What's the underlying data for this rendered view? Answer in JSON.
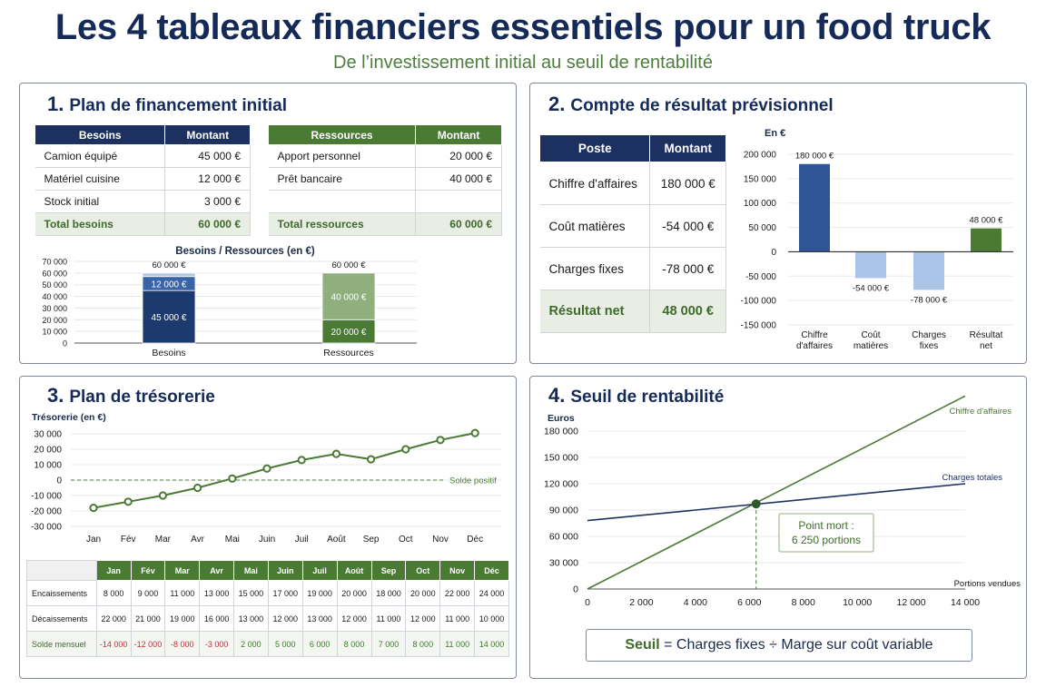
{
  "header": {
    "title": "Les 4 tableaux financiers essentiels pour un food truck",
    "subtitle": "De l’investissement initial au seuil de rentabilité"
  },
  "colors": {
    "navy": "#1d3161",
    "blue": "#2f5597",
    "light_blue": "#9cbbe0",
    "green": "#4a7a34",
    "light_green": "#8fb07c",
    "red": "#c0303a"
  },
  "panel1": {
    "num": "1.",
    "title": "Plan de financement initial",
    "besoins_table": {
      "headers": [
        "Besoins",
        "Montant"
      ],
      "rows": [
        [
          "Camion équipé",
          "45 000 €"
        ],
        [
          "Matériel cuisine",
          "12 000 €"
        ],
        [
          "Stock initial",
          "3 000 €"
        ]
      ],
      "total": [
        "Total besoins",
        "60 000 €"
      ]
    },
    "ressources_table": {
      "headers": [
        "Ressources",
        "Montant"
      ],
      "rows": [
        [
          "Apport personnel",
          "20 000 €"
        ],
        [
          "Prêt bancaire",
          "40 000 €"
        ],
        [
          "",
          ""
        ]
      ],
      "total": [
        "Total ressources",
        "60 000 €"
      ]
    }
  },
  "panel2": {
    "num": "2.",
    "title": "Compte de résultat prévisionnel",
    "table": {
      "headers": [
        "Poste",
        "Montant"
      ],
      "rows": [
        [
          "Chiffre d'affaires",
          "180 000 €"
        ],
        [
          "Coût matières",
          "-54 000 €"
        ],
        [
          "Charges fixes",
          "-78 000 €"
        ]
      ],
      "total": [
        "Résultat net",
        "48 000 €"
      ]
    }
  },
  "panel3": {
    "num": "3.",
    "title": "Plan de trésorerie",
    "table": {
      "months": [
        "Jan",
        "Fév",
        "Mar",
        "Avr",
        "Mai",
        "Juin",
        "Juil",
        "Août",
        "Sep",
        "Oct",
        "Nov",
        "Déc"
      ],
      "rows": [
        {
          "label": "Encaissements",
          "values": [
            "8 000",
            "9 000",
            "11 000",
            "13 000",
            "15 000",
            "17 000",
            "19 000",
            "20 000",
            "18 000",
            "20 000",
            "22 000",
            "24 000"
          ]
        },
        {
          "label": "Décaissements",
          "values": [
            "22 000",
            "21 000",
            "19 000",
            "16 000",
            "13 000",
            "12 000",
            "13 000",
            "12 000",
            "11 000",
            "12 000",
            "11 000",
            "10 000"
          ]
        },
        {
          "label": "Solde mensuel",
          "values": [
            "-14 000",
            "-12 000",
            "-8 000",
            "-3 000",
            "2 000",
            "5 000",
            "6 000",
            "8 000",
            "7 000",
            "8 000",
            "11 000",
            "14 000"
          ]
        }
      ]
    }
  },
  "panel4": {
    "num": "4.",
    "title": "Seuil de rentabilité",
    "formula_label": "Seuil",
    "formula_eq": " =  Charges fixes ÷ Marge sur coût variable"
  },
  "chart_data": [
    {
      "type": "bar",
      "stacked": true,
      "title": "Besoins / Ressources (en €)",
      "categories": [
        "Besoins",
        "Ressources"
      ],
      "ylim": [
        0,
        70000
      ],
      "yticks": [
        "0",
        "10 000",
        "20 000",
        "30 000",
        "40 000",
        "50 000",
        "60 000",
        "70 000"
      ],
      "series": [
        {
          "name": "",
          "values": [
            45000,
            20000
          ],
          "labels": [
            "45 000 €",
            "20 000 €"
          ],
          "colors": [
            "#1d3a6e",
            "#4a7a34"
          ]
        },
        {
          "name": "",
          "values": [
            12000,
            40000
          ],
          "labels": [
            "12 000 €",
            "40 000 €"
          ],
          "colors": [
            "#3a64a8",
            "#8fb07c"
          ]
        },
        {
          "name": "",
          "values": [
            3000,
            0
          ],
          "labels": [
            "",
            ""
          ],
          "colors": [
            "#b4c8e4",
            "#8fb07c"
          ]
        }
      ],
      "totals": [
        "60 000 €",
        "60 000 €"
      ],
      "grid": true
    },
    {
      "type": "bar",
      "ylabel": "En €",
      "categories": [
        "Chiffre d'affaires",
        "Coût matières",
        "Charges fixes",
        "Résultat net"
      ],
      "category_lines": [
        [
          "Chiffre",
          "d'affaires"
        ],
        [
          "Coût",
          "matières"
        ],
        [
          "Charges",
          "fixes"
        ],
        [
          "Résultat",
          "net"
        ]
      ],
      "values": [
        180000,
        -54000,
        -78000,
        48000
      ],
      "labels": [
        "180 000 €",
        "-54 000 €",
        "-78 000 €",
        "48 000 €"
      ],
      "colors": [
        "#2f5597",
        "#a9c4e6",
        "#a9c4e6",
        "#4a7a34"
      ],
      "ylim": [
        -150000,
        200000
      ],
      "yticks": [
        "-150 000",
        "-100 000",
        "-50 000",
        "0",
        "50 000",
        "100 000",
        "150 000",
        "200 000"
      ],
      "grid": true
    },
    {
      "type": "line",
      "ylabel": "Trésorerie (en €)",
      "x": [
        "Jan",
        "Fév",
        "Mar",
        "Avr",
        "Mai",
        "Juin",
        "Juil",
        "Août",
        "Sep",
        "Oct",
        "Nov",
        "Déc"
      ],
      "series": [
        {
          "name": "",
          "values": [
            -18000,
            -14000,
            -10000,
            -5000,
            1000,
            7500,
            13000,
            17000,
            13500,
            20000,
            26000,
            30500
          ]
        }
      ],
      "reference_line": {
        "y": 0,
        "label": "Solde positif"
      },
      "ylim": [
        -30000,
        30000
      ],
      "yticks": [
        "-30 000",
        "-20 000",
        "-10 000",
        "0",
        "10 000",
        "20 000",
        "30 000"
      ],
      "grid": true
    },
    {
      "type": "line",
      "ylabel": "Euros",
      "xlabel": "Portions vendues",
      "xlim": [
        0,
        14000
      ],
      "ylim": [
        0,
        180000
      ],
      "xticks": [
        "0",
        "2 000",
        "4 000",
        "6 000",
        "8 000",
        "10 000",
        "12 000",
        "14 000"
      ],
      "yticks": [
        "0",
        "30 000",
        "60 000",
        "90 000",
        "120 000",
        "150 000",
        "180 000"
      ],
      "series": [
        {
          "name": "Chiffre d'affaires",
          "points": [
            [
              0,
              0
            ],
            [
              14000,
              220000
            ]
          ],
          "color": "#4a7a34"
        },
        {
          "name": "Charges totales",
          "points": [
            [
              0,
              78000
            ],
            [
              14000,
              120000
            ]
          ],
          "color": "#1d3161"
        }
      ],
      "annotation": {
        "x": 6250,
        "y": 97000,
        "text": [
          "Point mort :",
          "6 250 portions"
        ]
      },
      "grid": true
    }
  ]
}
